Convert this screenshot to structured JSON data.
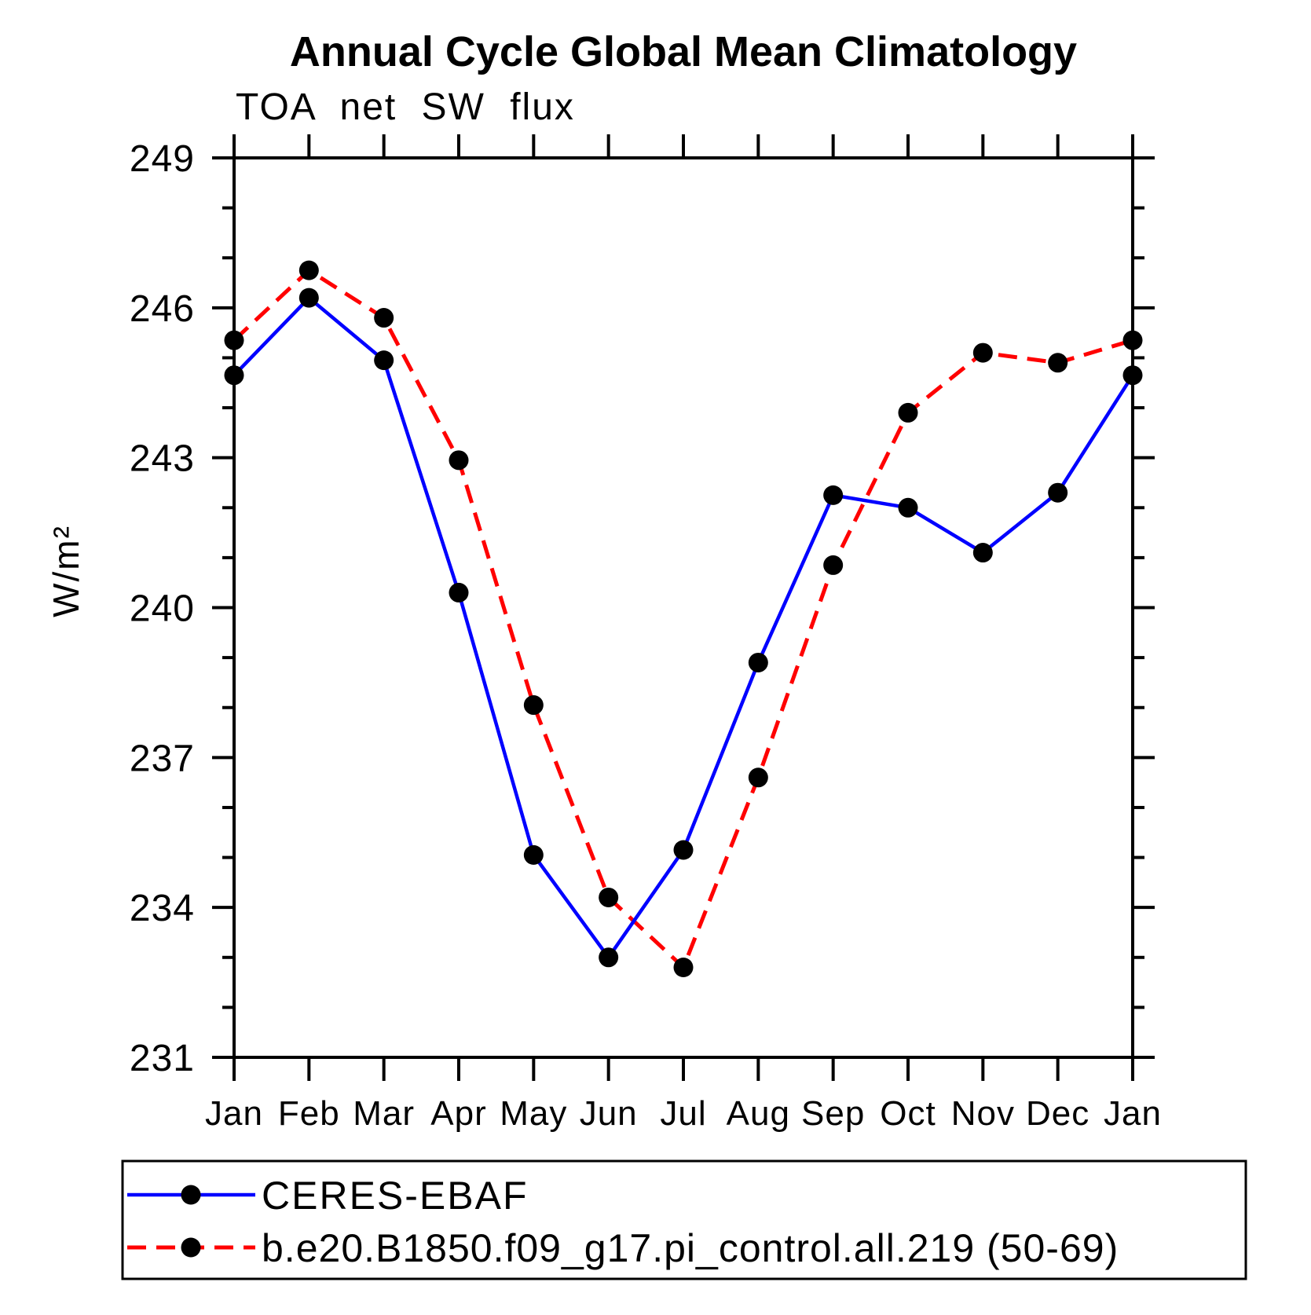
{
  "chart_data": {
    "type": "line",
    "title": "Annual Cycle Global Mean Climatology",
    "subtitle": "TOA net SW flux",
    "ylabel": "W/m²",
    "x_categories": [
      "Jan",
      "Feb",
      "Mar",
      "Apr",
      "May",
      "Jun",
      "Jul",
      "Aug",
      "Sep",
      "Oct",
      "Nov",
      "Dec",
      "Jan"
    ],
    "ylim": [
      231,
      249
    ],
    "ytick_major_step": 3,
    "ytick_minor_step": 1,
    "ytick_major_labels": [
      "231",
      "234",
      "237",
      "240",
      "243",
      "246",
      "249"
    ],
    "grid": "off",
    "legend_position": "bottom-outside-box",
    "axis_color": "#000000",
    "marker_color": "#000000",
    "series": [
      {
        "name": "CERES-EBAF",
        "color": "#0000ff",
        "line_style": "solid",
        "marker": "filled-circle",
        "values": [
          244.65,
          246.2,
          244.95,
          240.3,
          235.05,
          233.0,
          235.15,
          238.9,
          242.25,
          242.0,
          241.1,
          242.3,
          244.65
        ]
      },
      {
        "name": "b.e20.B1850.f09_g17.pi_control.all.219 (50-69)",
        "color": "#ff0000",
        "line_style": "dashed",
        "marker": "filled-circle",
        "values": [
          245.35,
          246.75,
          245.8,
          242.95,
          238.05,
          234.2,
          232.8,
          236.6,
          240.85,
          243.9,
          245.1,
          244.9,
          245.35
        ]
      }
    ]
  }
}
